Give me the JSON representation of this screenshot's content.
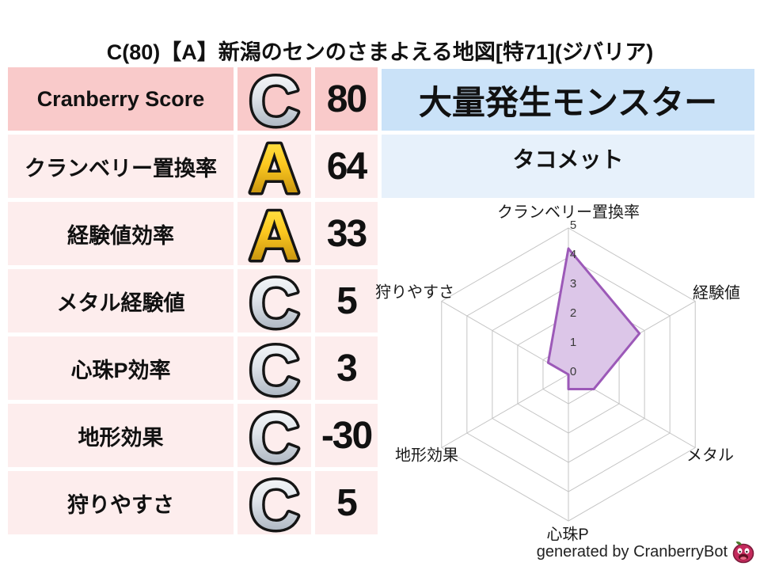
{
  "title": "C(80)【A】新潟のセンのさまよえる地図[特71](ジバリア)",
  "stats_table": {
    "rows": [
      {
        "label": "Cranberry Score",
        "grade": "C",
        "value": "80",
        "highlight": true
      },
      {
        "label": "クランベリー置換率",
        "grade": "A",
        "value": "64",
        "highlight": false
      },
      {
        "label": "経験値効率",
        "grade": "A",
        "value": "33",
        "highlight": false
      },
      {
        "label": "メタル経験値",
        "grade": "C",
        "value": "5",
        "highlight": false
      },
      {
        "label": "心珠P効率",
        "grade": "C",
        "value": "3",
        "highlight": false
      },
      {
        "label": "地形効果",
        "grade": "C",
        "value": "-30",
        "highlight": false
      },
      {
        "label": "狩りやすさ",
        "grade": "C",
        "value": "5",
        "highlight": false
      }
    ]
  },
  "monster_panel": {
    "header": "大量発生モンスター",
    "monster_name": "タコメット"
  },
  "chart_data": {
    "type": "radar",
    "categories": [
      "クランベリー置換率",
      "経験値",
      "メタル",
      "心珠P",
      "地形効果",
      "狩りやすさ"
    ],
    "values": [
      4.3,
      2.8,
      1.0,
      0.5,
      0,
      0.8
    ],
    "ticks": [
      0,
      1,
      2,
      3,
      4,
      5
    ],
    "rlim": [
      0,
      5
    ],
    "grid": "hexagonal",
    "legend": "none",
    "fill_color": "#dcc6e8",
    "stroke_color": "#9c59b8",
    "grid_color": "#c4c4c4",
    "tick_color": "#3a3a3a"
  },
  "footer": {
    "credit": "generated by CranberryBot",
    "logo": "cranberry-slime-icon"
  },
  "colors": {
    "row_highlight_bg": "#f9caca",
    "row_bg": "#fdeded",
    "header_bg": "#cae2f8",
    "subheader_bg": "#e7f1fb",
    "grade_gold_top": "#ffee55",
    "grade_gold_mid": "#fcc820",
    "grade_gold_bottom": "#b07d08",
    "grade_silver_top": "#ffffff",
    "grade_silver_mid": "#dfe4ea",
    "grade_silver_bottom": "#9aa4b2",
    "outline": "#151515"
  }
}
